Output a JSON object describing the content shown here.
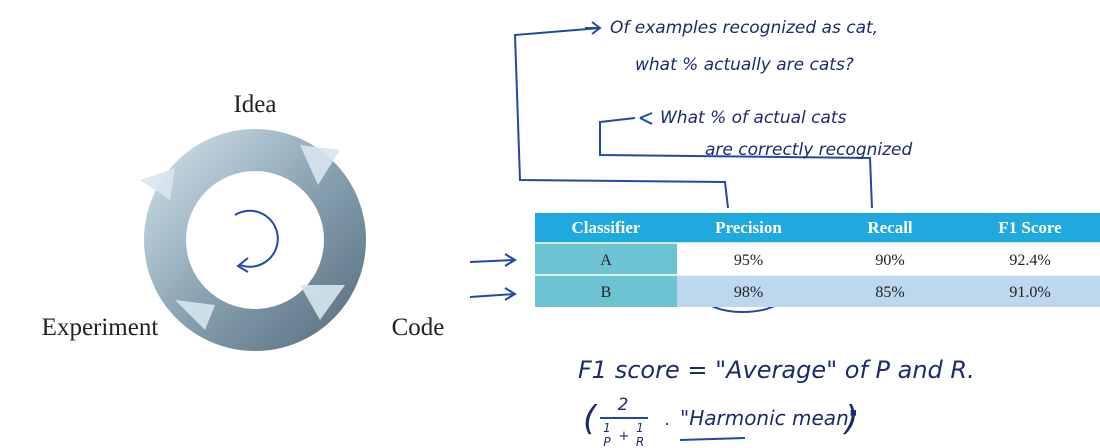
{
  "cycle": {
    "labels": [
      "Idea",
      "Code",
      "Experiment"
    ]
  },
  "notes": {
    "precision_note": [
      "Of examples recognized as cat,",
      "what % actually are cats?"
    ],
    "recall_note": [
      "What % of actual cats",
      "are correctly recognized"
    ],
    "f1_note": "F1 score = \"Average\" of P and R.",
    "formula": {
      "numerator": "2",
      "terms": [
        {
          "num": "1",
          "den": "P"
        },
        {
          "num": "1",
          "den": "R"
        }
      ],
      "plus": "+",
      "open": "(",
      "close": ")",
      "dot": "."
    },
    "harmonic": "\"Harmonic mean\""
  },
  "table": {
    "header": [
      "Classifier",
      "Precision",
      "Recall",
      "F1 Score"
    ],
    "rows": [
      [
        "A",
        "95%",
        "90%",
        "92.4%"
      ],
      [
        "B",
        "98%",
        "85%",
        "91.0%"
      ]
    ]
  }
}
